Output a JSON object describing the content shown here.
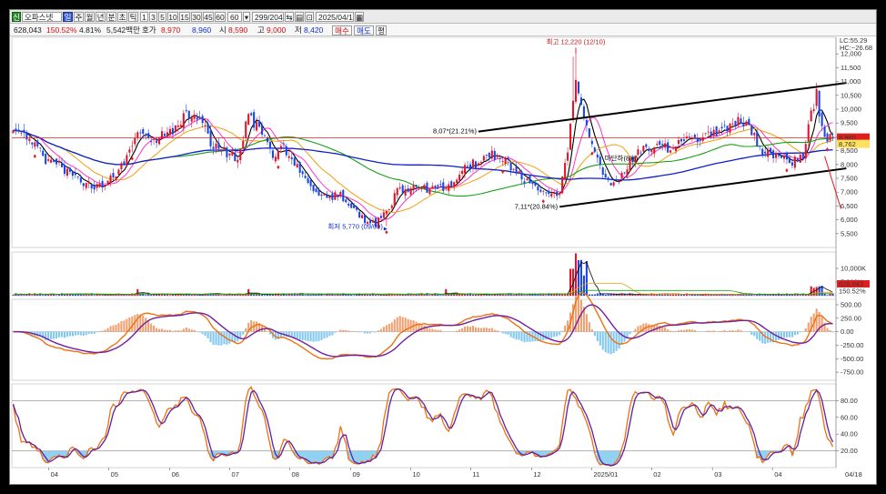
{
  "toolbar": {
    "badge": "신",
    "stock_name": "오파스넷",
    "periods": [
      "일",
      "주",
      "월",
      "년",
      "분",
      "초",
      "틱"
    ],
    "active_period": 0,
    "counts": [
      "1",
      "3",
      "5",
      "10",
      "15",
      "30",
      "45",
      "60"
    ],
    "dropdown_value": "60",
    "range": "299/2044",
    "date": "2025/04/18"
  },
  "infobar": {
    "price": "628,043",
    "rate": "150.52%",
    "diff": "4.81%",
    "amount": "5,542백만",
    "quote_label": "호가",
    "ask": "8,970",
    "bid": "8,960",
    "open_label": "시",
    "open": "8,590",
    "high_label": "고",
    "high": "9,000",
    "low_label": "저",
    "low": "8,420",
    "buy_label": "매수",
    "sell_label": "매도",
    "flat_label": "평"
  },
  "colors": {
    "up": "#e0142a",
    "down": "#1a46e6",
    "ma5": "#000000",
    "ma10": "#ff33cc",
    "ma20": "#f0a010",
    "ma60": "#18a018",
    "ma120": "#1020c8",
    "channel": "#000000",
    "hline": "#e02020"
  },
  "chart_data": [
    {
      "panel": "price",
      "type": "candlestick",
      "x_labels": [
        "04",
        "05",
        "06",
        "07",
        "08",
        "09",
        "10",
        "11",
        "12",
        "2025/01",
        "02",
        "03",
        "04",
        "04/18"
      ],
      "ylim": [
        5000,
        12600
      ],
      "ticks": [
        5500,
        6000,
        6500,
        7000,
        7500,
        8000,
        8500,
        9000,
        9500,
        10000,
        10500,
        11000,
        11500,
        12000
      ],
      "tick_labels": [
        "5,500",
        "6,000",
        "6,500",
        "7,000",
        "7,500",
        "8,000",
        "8,500",
        "9,000",
        "9,500",
        "10,000",
        "10,500",
        "11,000",
        "11,500",
        "12,000"
      ],
      "price_path": [
        [
          0,
          9300
        ],
        [
          7,
          8900
        ],
        [
          12,
          8200
        ],
        [
          18,
          7900
        ],
        [
          24,
          7400
        ],
        [
          30,
          7200
        ],
        [
          36,
          7450
        ],
        [
          41,
          8100
        ],
        [
          46,
          9000
        ],
        [
          52,
          8900
        ],
        [
          58,
          9200
        ],
        [
          63,
          9700
        ],
        [
          67,
          9900
        ],
        [
          70,
          9500
        ],
        [
          73,
          8700
        ],
        [
          79,
          8400
        ],
        [
          83,
          8200
        ],
        [
          87,
          9800
        ],
        [
          91,
          9200
        ],
        [
          96,
          8400
        ],
        [
          100,
          8600
        ],
        [
          104,
          8000
        ],
        [
          108,
          7600
        ],
        [
          111,
          6900
        ],
        [
          116,
          6800
        ],
        [
          121,
          6900
        ],
        [
          126,
          6400
        ],
        [
          130,
          6000
        ],
        [
          134,
          5850
        ],
        [
          138,
          6300
        ],
        [
          142,
          7000
        ],
        [
          148,
          7200
        ],
        [
          154,
          7100
        ],
        [
          160,
          7200
        ],
        [
          164,
          7500
        ],
        [
          168,
          8050
        ],
        [
          172,
          8000
        ],
        [
          177,
          8400
        ],
        [
          181,
          8200
        ],
        [
          186,
          7700
        ],
        [
          190,
          7400
        ],
        [
          194,
          7100
        ],
        [
          198,
          7000
        ],
        [
          202,
          7000
        ],
        [
          205,
          8500
        ],
        [
          208,
          11000
        ],
        [
          211,
          9700
        ],
        [
          214,
          8600
        ],
        [
          218,
          7600
        ],
        [
          222,
          7200
        ],
        [
          226,
          7800
        ],
        [
          231,
          8500
        ],
        [
          236,
          8700
        ],
        [
          242,
          8600
        ],
        [
          248,
          8800
        ],
        [
          254,
          9000
        ],
        [
          260,
          9100
        ],
        [
          265,
          9400
        ],
        [
          268,
          9600
        ],
        [
          272,
          9400
        ],
        [
          276,
          8600
        ],
        [
          280,
          8300
        ],
        [
          284,
          8200
        ],
        [
          288,
          8100
        ],
        [
          292,
          8300
        ],
        [
          295,
          9900
        ],
        [
          297,
          10500
        ],
        [
          299,
          9400
        ],
        [
          301,
          9000
        ],
        [
          303,
          8960
        ]
      ],
      "annotations": [
        {
          "text": "최고 12,220 (12/10)",
          "x": 208,
          "y": 12220,
          "color": "#d01010"
        },
        {
          "text": "8,07*(21.21%)",
          "x": 172,
          "y": 9190,
          "color": "#000000"
        },
        {
          "text": "7,11*(20.84%)",
          "x": 202,
          "y": 6470,
          "color": "#000000"
        },
        {
          "text": "최저 5,770 (09/09)",
          "x": 138,
          "y": 5770,
          "color": "#1030d0"
        },
        {
          "text": "마단하(8%)",
          "x": 218,
          "y": 8150,
          "color": "#000000"
        }
      ],
      "legend": [
        {
          "text": "LC:55.29",
          "color": "#d01010"
        },
        {
          "text": "HC:~26.68",
          "color": "#1030d0"
        }
      ],
      "current_price_label": "8,960",
      "current_price": 8960,
      "secondary_label": "8,762",
      "channel_upper": [
        [
          172,
          9190
        ],
        [
          308,
          10950
        ]
      ],
      "channel_lower": [
        [
          202,
          6470
        ],
        [
          308,
          7860
        ]
      ]
    },
    {
      "panel": "volume",
      "type": "bar",
      "ylim": [
        0,
        16000
      ],
      "ticks": [
        5000,
        10000
      ],
      "tick_labels": [
        "5,000K",
        "10,000K"
      ],
      "last_labels": [
        "628,043",
        "150.52%"
      ]
    },
    {
      "panel": "macd",
      "type": "line",
      "ylim": [
        -900,
        600
      ],
      "ticks": [
        500,
        250,
        0,
        -250,
        -500,
        -750
      ],
      "tick_labels": [
        "500.00",
        "250.00",
        "0.00",
        "-250.00",
        "-500.00",
        "-750.00"
      ]
    },
    {
      "panel": "stochastic",
      "type": "line",
      "ylim": [
        0,
        100
      ],
      "ticks": [
        80,
        60,
        40,
        20
      ],
      "tick_labels": [
        "80.00",
        "60.00",
        "40.00",
        "20.00"
      ]
    }
  ]
}
